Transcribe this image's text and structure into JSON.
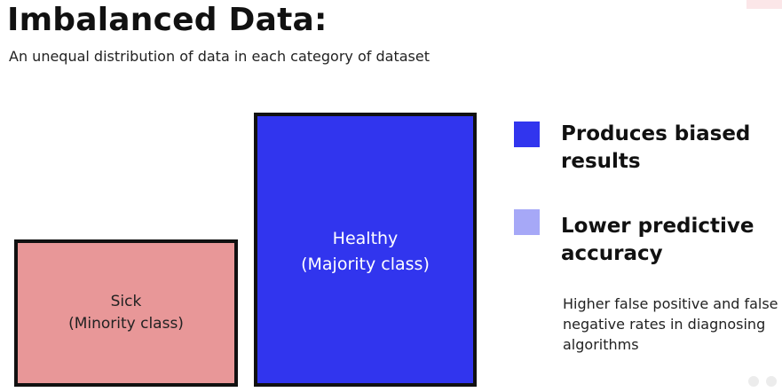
{
  "header": {
    "title": "Imbalanced Data:",
    "subtitle": "An unequal distribution of data in each category of dataset"
  },
  "boxes": {
    "sick": {
      "label": "Sick",
      "sublabel": "(Minority class)",
      "color": "#e89798"
    },
    "healthy": {
      "label": "Healthy",
      "sublabel": "(Majority class)",
      "color": "#3135ee"
    }
  },
  "legend": {
    "items": [
      {
        "text": "Produces biased results",
        "color": "#3135ee"
      },
      {
        "text": "Lower predictive accuracy",
        "color": "#a6a8f7"
      }
    ],
    "note": "Higher false positive and false negative rates in diagnosing algorithms"
  }
}
